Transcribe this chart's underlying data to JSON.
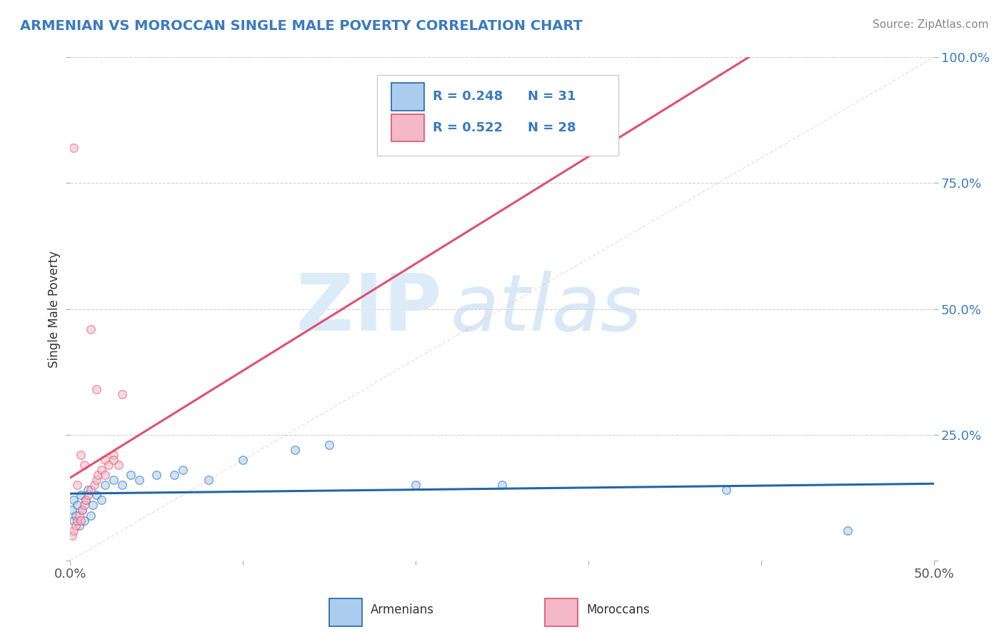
{
  "title": "ARMENIAN VS MOROCCAN SINGLE MALE POVERTY CORRELATION CHART",
  "source": "Source: ZipAtlas.com",
  "xlim": [
    0.0,
    0.5
  ],
  "ylim": [
    0.0,
    1.0
  ],
  "armenian_x": [
    0.001,
    0.002,
    0.002,
    0.003,
    0.004,
    0.005,
    0.006,
    0.007,
    0.008,
    0.009,
    0.01,
    0.012,
    0.013,
    0.015,
    0.018,
    0.02,
    0.025,
    0.03,
    0.035,
    0.04,
    0.05,
    0.06,
    0.065,
    0.08,
    0.1,
    0.13,
    0.15,
    0.2,
    0.25,
    0.38,
    0.45
  ],
  "armenian_y": [
    0.1,
    0.08,
    0.12,
    0.09,
    0.11,
    0.07,
    0.13,
    0.1,
    0.08,
    0.12,
    0.14,
    0.09,
    0.11,
    0.13,
    0.12,
    0.15,
    0.16,
    0.15,
    0.17,
    0.16,
    0.17,
    0.17,
    0.18,
    0.16,
    0.2,
    0.22,
    0.23,
    0.15,
    0.15,
    0.14,
    0.06
  ],
  "moroccan_x": [
    0.001,
    0.002,
    0.003,
    0.004,
    0.005,
    0.006,
    0.007,
    0.008,
    0.009,
    0.01,
    0.012,
    0.014,
    0.015,
    0.016,
    0.018,
    0.02,
    0.022,
    0.025,
    0.028,
    0.03,
    0.002,
    0.004,
    0.006,
    0.008,
    0.012,
    0.015,
    0.02,
    0.025
  ],
  "moroccan_y": [
    0.05,
    0.06,
    0.07,
    0.08,
    0.09,
    0.08,
    0.1,
    0.11,
    0.12,
    0.13,
    0.14,
    0.15,
    0.16,
    0.17,
    0.18,
    0.2,
    0.19,
    0.21,
    0.19,
    0.33,
    0.82,
    0.15,
    0.21,
    0.19,
    0.46,
    0.34,
    0.17,
    0.2
  ],
  "armenian_color": "#aaccee",
  "moroccan_color": "#f5b8c8",
  "armenian_line_color": "#2266aa",
  "moroccan_line_color": "#e05070",
  "r_armenian": 0.248,
  "n_armenian": 31,
  "r_moroccan": 0.522,
  "n_moroccan": 28,
  "legend_text_color": "#3a7bbf",
  "watermark_color": "#d8eaf8",
  "background_color": "#ffffff",
  "grid_color": "#cccccc",
  "title_color": "#3a7bbf",
  "source_color": "#888888",
  "axis_ylabel": "Single Male Poverty",
  "marker_size": 70,
  "marker_alpha": 0.55,
  "marker_edge_width": 1.0,
  "diag_line_color": "#f5b8c8",
  "x_tick_positions": [
    0.0,
    0.1,
    0.2,
    0.3,
    0.4,
    0.5
  ],
  "x_tick_labels": [
    "0.0%",
    "",
    "",
    "",
    "",
    "50.0%"
  ],
  "y_tick_positions": [
    0.0,
    0.25,
    0.5,
    0.75,
    1.0
  ],
  "y_tick_labels": [
    "",
    "25.0%",
    "50.0%",
    "75.0%",
    "100.0%"
  ]
}
